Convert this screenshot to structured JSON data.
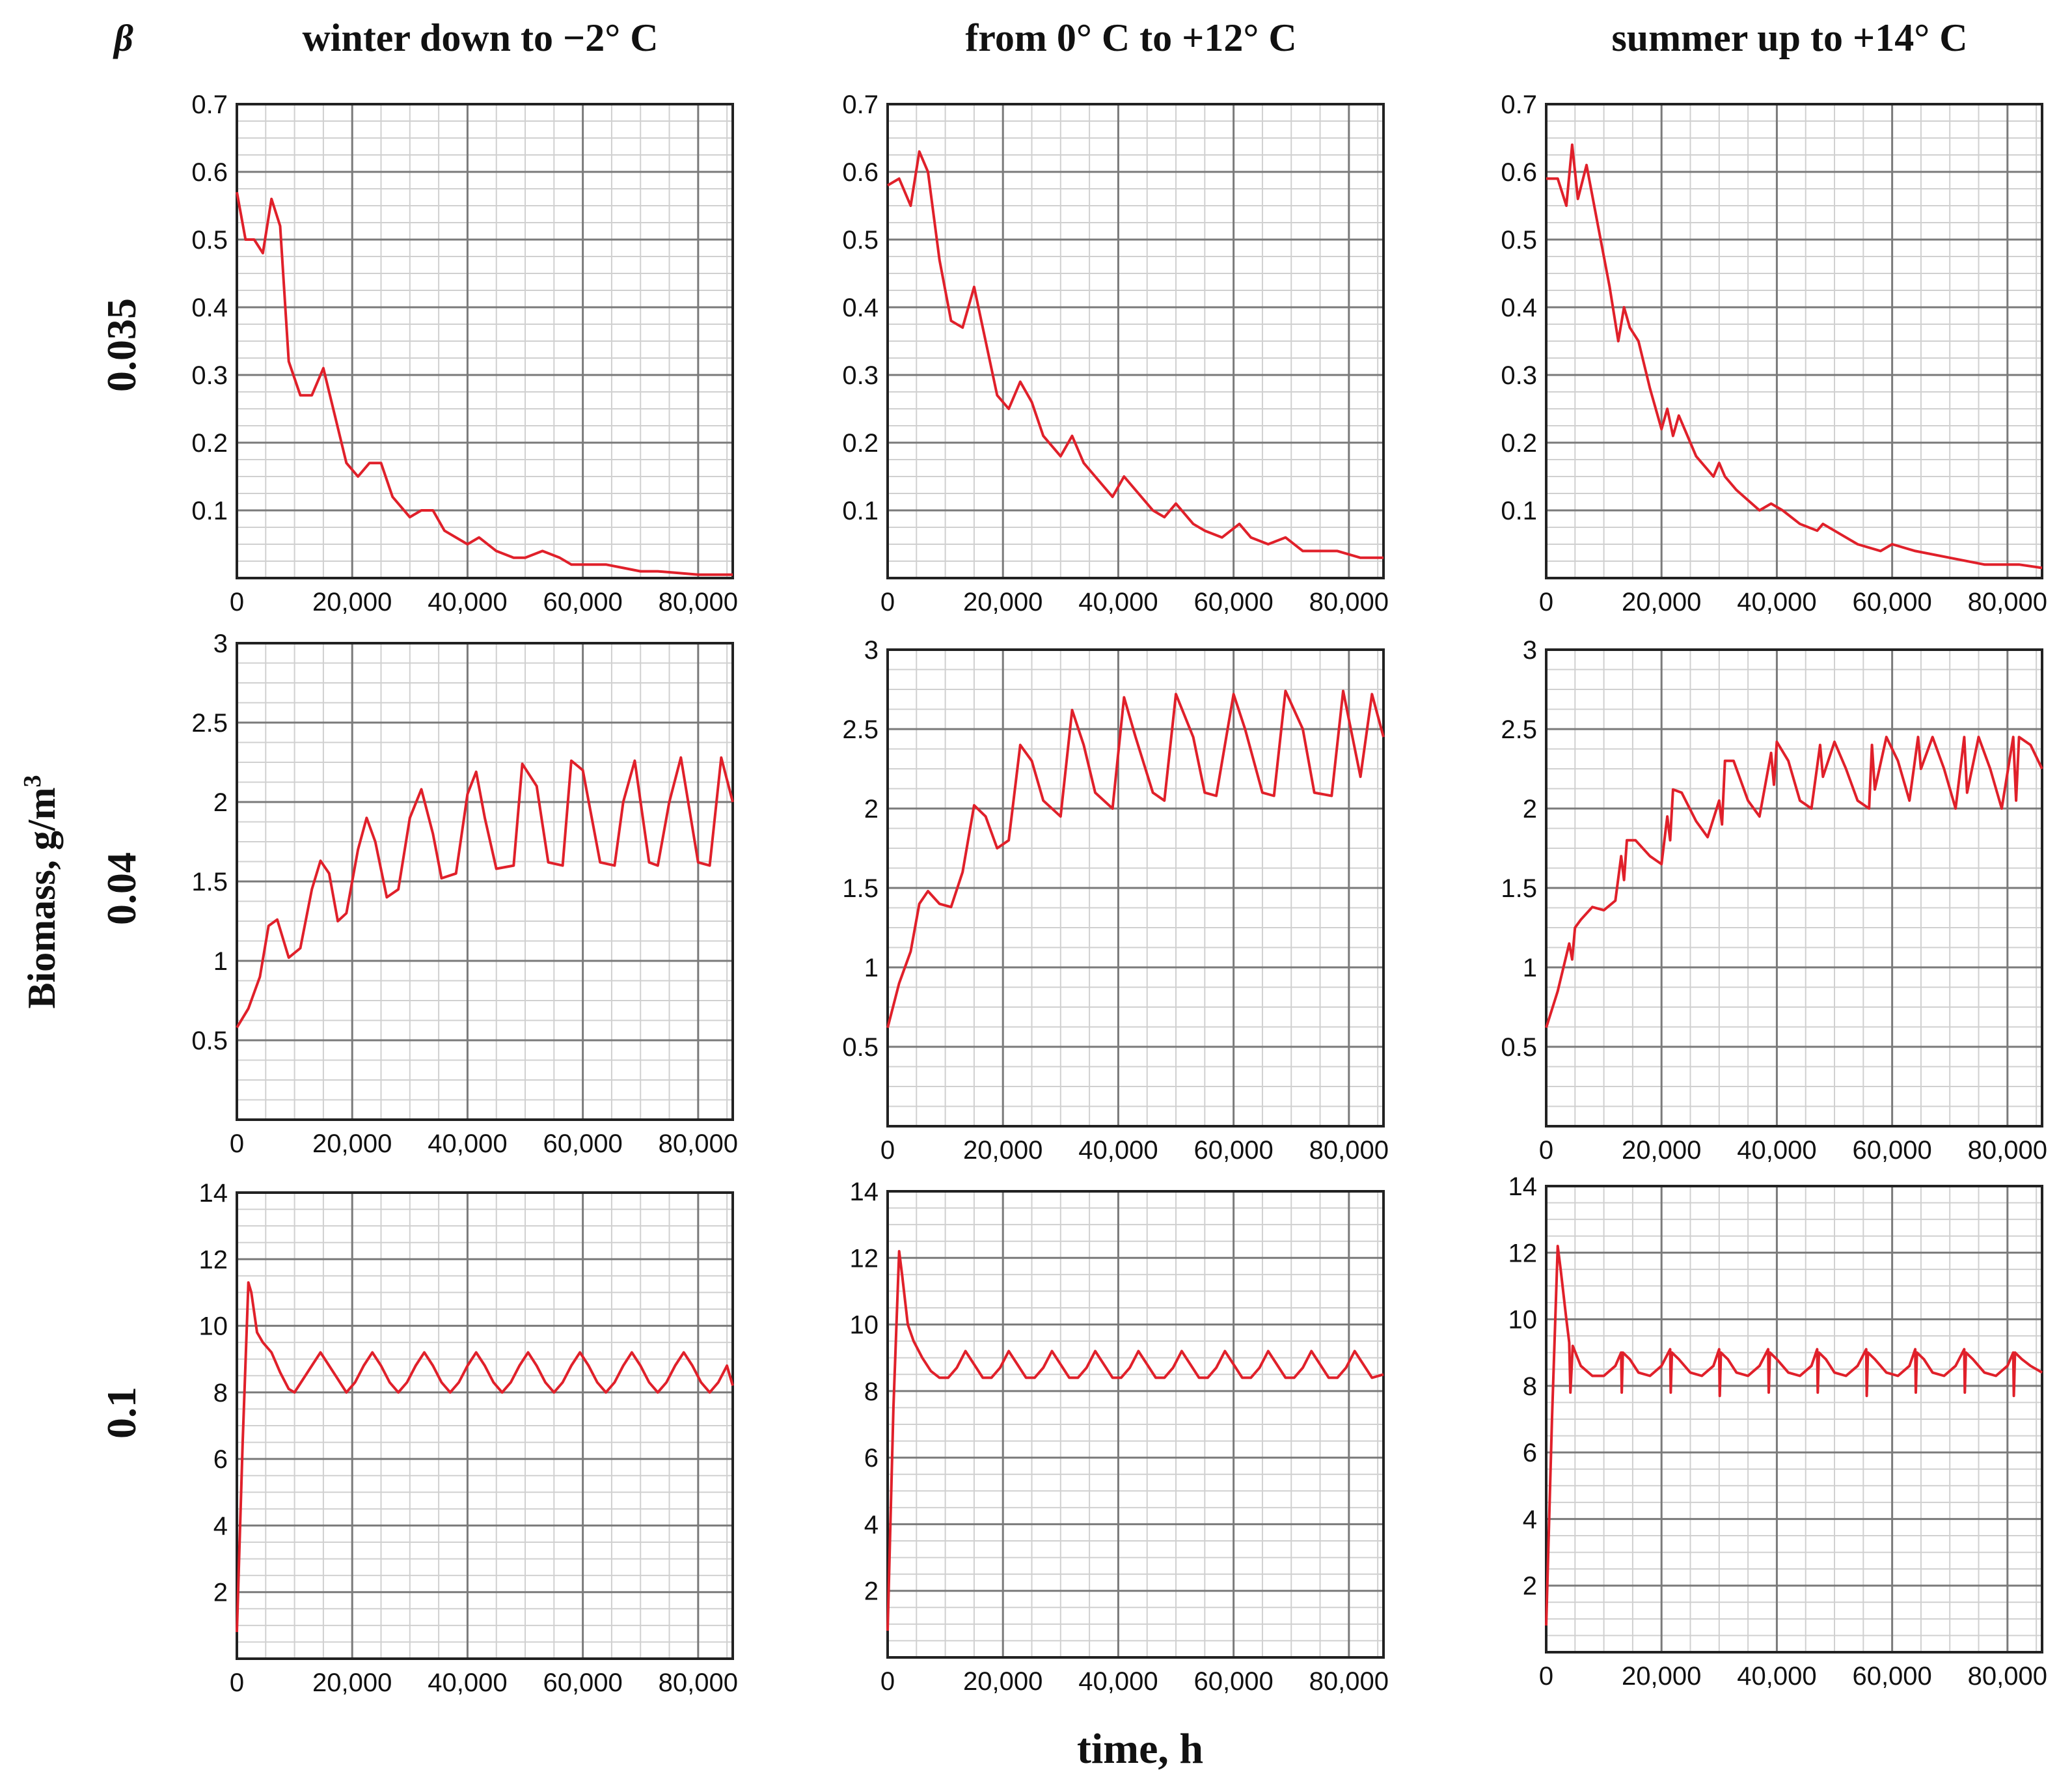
{
  "figure": {
    "beta_symbol": "β",
    "column_titles": [
      "winter down to −2° C",
      "from 0° C to +12° C",
      "summer up to +14° C"
    ],
    "row_labels": [
      "0.035",
      "0.04",
      "0.1"
    ],
    "y_axis_label": "Biomass, g/m",
    "y_axis_label_sup": "3",
    "x_axis_label": "time, h",
    "x_tick_labels": [
      "0",
      "20,000",
      "40,000",
      "60,000",
      "80,000"
    ],
    "colors": {
      "line": "#e0202a",
      "grid_major": "#7a7a7a",
      "grid_minor": "#d0d0d0",
      "axis": "#222222"
    }
  },
  "chart_data": [
    {
      "type": "line",
      "id": "r0c0",
      "beta": "0.035",
      "condition": "winter down to −2° C",
      "xlim": [
        0,
        86000
      ],
      "ylim": [
        0,
        0.7
      ],
      "yticks": [
        0.1,
        0.2,
        0.3,
        0.4,
        0.5,
        0.6,
        0.7
      ],
      "ytick_labels": [
        "0.1",
        "0.2",
        "0.3",
        "0.4",
        "0.5",
        "0.6",
        "0.7"
      ],
      "x": [
        0,
        1500,
        3000,
        4500,
        6000,
        7500,
        9000,
        11000,
        13000,
        15000,
        17000,
        19000,
        21000,
        23000,
        25000,
        27000,
        30000,
        32000,
        34000,
        36000,
        38000,
        40000,
        42000,
        45000,
        48000,
        50000,
        53000,
        56000,
        58000,
        61000,
        64000,
        67000,
        70000,
        73000,
        76000,
        80000,
        86000
      ],
      "y": [
        0.57,
        0.5,
        0.5,
        0.48,
        0.56,
        0.52,
        0.32,
        0.27,
        0.27,
        0.31,
        0.24,
        0.17,
        0.15,
        0.17,
        0.17,
        0.12,
        0.09,
        0.1,
        0.1,
        0.07,
        0.06,
        0.05,
        0.06,
        0.04,
        0.03,
        0.03,
        0.04,
        0.03,
        0.02,
        0.02,
        0.02,
        0.015,
        0.01,
        0.01,
        0.008,
        0.005,
        0.005
      ]
    },
    {
      "type": "line",
      "id": "r0c1",
      "beta": "0.035",
      "condition": "from 0° C to +12° C",
      "xlim": [
        0,
        86000
      ],
      "ylim": [
        0,
        0.7
      ],
      "yticks": [
        0.1,
        0.2,
        0.3,
        0.4,
        0.5,
        0.6,
        0.7
      ],
      "ytick_labels": [
        "0.1",
        "0.2",
        "0.3",
        "0.4",
        "0.5",
        "0.6",
        "0.7"
      ],
      "x": [
        0,
        2000,
        4000,
        5500,
        7000,
        9000,
        11000,
        13000,
        15000,
        17000,
        19000,
        21000,
        23000,
        25000,
        27000,
        30000,
        32000,
        34000,
        36000,
        39000,
        41000,
        43000,
        46000,
        48000,
        50000,
        53000,
        55000,
        58000,
        61000,
        63000,
        66000,
        69000,
        72000,
        75000,
        78000,
        82000,
        86000
      ],
      "y": [
        0.58,
        0.59,
        0.55,
        0.63,
        0.6,
        0.47,
        0.38,
        0.37,
        0.43,
        0.35,
        0.27,
        0.25,
        0.29,
        0.26,
        0.21,
        0.18,
        0.21,
        0.17,
        0.15,
        0.12,
        0.15,
        0.13,
        0.1,
        0.09,
        0.11,
        0.08,
        0.07,
        0.06,
        0.08,
        0.06,
        0.05,
        0.06,
        0.04,
        0.04,
        0.04,
        0.03,
        0.03
      ]
    },
    {
      "type": "line",
      "id": "r0c2",
      "beta": "0.035",
      "condition": "summer up to +14° C",
      "xlim": [
        0,
        86000
      ],
      "ylim": [
        0,
        0.7
      ],
      "yticks": [
        0.1,
        0.2,
        0.3,
        0.4,
        0.5,
        0.6,
        0.7
      ],
      "ytick_labels": [
        "0.1",
        "0.2",
        "0.3",
        "0.4",
        "0.5",
        "0.6",
        "0.7"
      ],
      "x": [
        0,
        2000,
        3500,
        4500,
        5500,
        7000,
        9000,
        11000,
        12500,
        13500,
        14500,
        16000,
        18000,
        20000,
        21000,
        22000,
        23000,
        24000,
        26000,
        29000,
        30000,
        31000,
        33000,
        37000,
        39000,
        41000,
        44000,
        47000,
        48000,
        50000,
        54000,
        58000,
        60000,
        64000,
        70000,
        76000,
        82000,
        86000
      ],
      "y": [
        0.59,
        0.59,
        0.55,
        0.64,
        0.56,
        0.61,
        0.52,
        0.43,
        0.35,
        0.4,
        0.37,
        0.35,
        0.28,
        0.22,
        0.25,
        0.21,
        0.24,
        0.22,
        0.18,
        0.15,
        0.17,
        0.15,
        0.13,
        0.1,
        0.11,
        0.1,
        0.08,
        0.07,
        0.08,
        0.07,
        0.05,
        0.04,
        0.05,
        0.04,
        0.03,
        0.02,
        0.02,
        0.015
      ]
    },
    {
      "type": "line",
      "id": "r1c0",
      "beta": "0.04",
      "condition": "winter down to −2° C",
      "xlim": [
        0,
        86000
      ],
      "ylim": [
        0,
        3
      ],
      "yticks": [
        0.5,
        1,
        1.5,
        2,
        2.5,
        3
      ],
      "ytick_labels": [
        "0.5",
        "1",
        "1.5",
        "2",
        "2.5",
        "3"
      ],
      "x": [
        0,
        2000,
        4000,
        5500,
        7000,
        9000,
        11000,
        13000,
        14500,
        16000,
        17500,
        19000,
        21000,
        22500,
        24000,
        26000,
        28000,
        30000,
        32000,
        34000,
        35500,
        38000,
        40000,
        41500,
        43000,
        45000,
        48000,
        49500,
        52000,
        54000,
        56500,
        58000,
        60000,
        63000,
        65500,
        67000,
        69000,
        71500,
        73000,
        75000,
        77000,
        80000,
        82000,
        84000,
        86000
      ],
      "y": [
        0.58,
        0.7,
        0.9,
        1.22,
        1.26,
        1.02,
        1.08,
        1.45,
        1.63,
        1.55,
        1.25,
        1.3,
        1.7,
        1.9,
        1.75,
        1.4,
        1.45,
        1.9,
        2.08,
        1.8,
        1.52,
        1.55,
        2.05,
        2.19,
        1.9,
        1.58,
        1.6,
        2.24,
        2.1,
        1.62,
        1.6,
        2.26,
        2.2,
        1.62,
        1.6,
        2.0,
        2.26,
        1.62,
        1.6,
        2.0,
        2.28,
        1.62,
        1.6,
        2.28,
        2.0
      ]
    },
    {
      "type": "line",
      "id": "r1c1",
      "beta": "0.04",
      "condition": "from 0° C to +12° C",
      "xlim": [
        0,
        86000
      ],
      "ylim": [
        0,
        3
      ],
      "yticks": [
        0.5,
        1,
        1.5,
        2,
        2.5,
        3
      ],
      "ytick_labels": [
        "0.5",
        "1",
        "1.5",
        "2",
        "2.5",
        "3"
      ],
      "x": [
        0,
        2000,
        4000,
        5500,
        7000,
        9000,
        11000,
        13000,
        15000,
        17000,
        19000,
        21000,
        23000,
        25000,
        27000,
        30000,
        32000,
        34000,
        36000,
        39000,
        41000,
        43000,
        46000,
        48000,
        50000,
        53000,
        55000,
        57000,
        60000,
        62000,
        65000,
        67000,
        69000,
        72000,
        74000,
        77000,
        79000,
        82000,
        84000,
        86000
      ],
      "y": [
        0.62,
        0.9,
        1.1,
        1.4,
        1.48,
        1.4,
        1.38,
        1.6,
        2.02,
        1.95,
        1.75,
        1.8,
        2.4,
        2.3,
        2.05,
        1.95,
        2.62,
        2.4,
        2.1,
        2.0,
        2.7,
        2.45,
        2.1,
        2.05,
        2.72,
        2.45,
        2.1,
        2.08,
        2.72,
        2.5,
        2.1,
        2.08,
        2.74,
        2.5,
        2.1,
        2.08,
        2.74,
        2.2,
        2.72,
        2.45
      ]
    },
    {
      "type": "line",
      "id": "r1c2",
      "beta": "0.04",
      "condition": "summer up to +14° C",
      "xlim": [
        0,
        86000
      ],
      "ylim": [
        0,
        3
      ],
      "yticks": [
        0.5,
        1,
        1.5,
        2,
        2.5,
        3
      ],
      "ytick_labels": [
        "0.5",
        "1",
        "1.5",
        "2",
        "2.5",
        "3"
      ],
      "x": [
        0,
        2000,
        4000,
        4500,
        5000,
        6000,
        8000,
        10000,
        12000,
        13000,
        13500,
        14000,
        15500,
        18000,
        20000,
        21000,
        21500,
        22000,
        23500,
        26000,
        28000,
        30000,
        30500,
        31000,
        32500,
        35000,
        37000,
        39000,
        39500,
        40000,
        42000,
        44000,
        46000,
        47500,
        48000,
        50000,
        52000,
        54000,
        56000,
        56500,
        57000,
        59000,
        61000,
        63000,
        64500,
        65000,
        67000,
        69000,
        71000,
        72500,
        73000,
        75000,
        77000,
        79000,
        81000,
        81500,
        82000,
        84000,
        86000
      ],
      "y": [
        0.62,
        0.85,
        1.15,
        1.05,
        1.25,
        1.3,
        1.38,
        1.36,
        1.42,
        1.7,
        1.55,
        1.8,
        1.8,
        1.7,
        1.65,
        1.95,
        1.8,
        2.12,
        2.1,
        1.92,
        1.82,
        2.05,
        1.9,
        2.3,
        2.3,
        2.05,
        1.95,
        2.35,
        2.15,
        2.42,
        2.3,
        2.05,
        2.0,
        2.4,
        2.2,
        2.42,
        2.25,
        2.05,
        2.0,
        2.4,
        2.12,
        2.45,
        2.3,
        2.05,
        2.45,
        2.25,
        2.45,
        2.25,
        2.0,
        2.45,
        2.1,
        2.45,
        2.25,
        2.0,
        2.45,
        2.05,
        2.45,
        2.4,
        2.25
      ]
    },
    {
      "type": "line",
      "id": "r2c0",
      "beta": "0.1",
      "condition": "winter down to −2° C",
      "xlim": [
        0,
        86000
      ],
      "ylim": [
        0,
        14
      ],
      "yticks": [
        2,
        4,
        6,
        8,
        10,
        12,
        14
      ],
      "ytick_labels": [
        "2",
        "4",
        "6",
        "8",
        "10",
        "12",
        "14"
      ],
      "x": [
        0,
        1000,
        2000,
        2500,
        3500,
        4500,
        6000,
        7500,
        9000,
        10000,
        11500,
        13000,
        14500,
        16000,
        17500,
        19000,
        20500,
        22000,
        23500,
        25000,
        26500,
        28000,
        29500,
        31000,
        32500,
        34000,
        35500,
        37000,
        38500,
        40000,
        41500,
        43000,
        44500,
        46000,
        47500,
        49000,
        50500,
        52000,
        53500,
        55000,
        56500,
        58000,
        59500,
        61000,
        62500,
        64000,
        65500,
        67000,
        68500,
        70000,
        71500,
        73000,
        74500,
        76000,
        77500,
        79000,
        80500,
        82000,
        83500,
        85000,
        86000
      ],
      "y": [
        0.8,
        6.5,
        11.3,
        11.0,
        9.8,
        9.5,
        9.2,
        8.6,
        8.1,
        8.0,
        8.4,
        8.8,
        9.2,
        8.8,
        8.4,
        8.0,
        8.3,
        8.8,
        9.2,
        8.8,
        8.3,
        8.0,
        8.3,
        8.8,
        9.2,
        8.8,
        8.3,
        8.0,
        8.3,
        8.8,
        9.2,
        8.8,
        8.3,
        8.0,
        8.3,
        8.8,
        9.2,
        8.8,
        8.3,
        8.0,
        8.3,
        8.8,
        9.2,
        8.8,
        8.3,
        8.0,
        8.3,
        8.8,
        9.2,
        8.8,
        8.3,
        8.0,
        8.3,
        8.8,
        9.2,
        8.8,
        8.3,
        8.0,
        8.3,
        8.8,
        8.2
      ]
    },
    {
      "type": "line",
      "id": "r2c1",
      "beta": "0.1",
      "condition": "from 0° C to +12° C",
      "xlim": [
        0,
        86000
      ],
      "ylim": [
        0,
        14
      ],
      "yticks": [
        2,
        4,
        6,
        8,
        10,
        12,
        14
      ],
      "ytick_labels": [
        "2",
        "4",
        "6",
        "8",
        "10",
        "12",
        "14"
      ],
      "x": [
        0,
        1000,
        2000,
        2500,
        3500,
        4500,
        6000,
        7500,
        9000,
        10500,
        12000,
        13500,
        15000,
        16500,
        18000,
        19500,
        21000,
        22500,
        24000,
        25500,
        27000,
        28500,
        30000,
        31500,
        33000,
        34500,
        36000,
        37500,
        39000,
        40500,
        42000,
        43500,
        45000,
        46500,
        48000,
        49500,
        51000,
        52500,
        54000,
        55500,
        57000,
        58500,
        60000,
        61500,
        63000,
        64500,
        66000,
        67500,
        69000,
        70500,
        72000,
        73500,
        75000,
        76500,
        78000,
        79500,
        81000,
        82500,
        84000,
        86000
      ],
      "y": [
        0.8,
        7.5,
        12.2,
        11.5,
        10.0,
        9.5,
        9.0,
        8.6,
        8.4,
        8.4,
        8.7,
        9.2,
        8.8,
        8.4,
        8.4,
        8.7,
        9.2,
        8.8,
        8.4,
        8.4,
        8.7,
        9.2,
        8.8,
        8.4,
        8.4,
        8.7,
        9.2,
        8.8,
        8.4,
        8.4,
        8.7,
        9.2,
        8.8,
        8.4,
        8.4,
        8.7,
        9.2,
        8.8,
        8.4,
        8.4,
        8.7,
        9.2,
        8.8,
        8.4,
        8.4,
        8.7,
        9.2,
        8.8,
        8.4,
        8.4,
        8.7,
        9.2,
        8.8,
        8.4,
        8.4,
        8.7,
        9.2,
        8.8,
        8.4,
        8.5
      ]
    },
    {
      "type": "line",
      "id": "r2c2",
      "beta": "0.1",
      "condition": "summer up to +14° C",
      "xlim": [
        0,
        86000
      ],
      "ylim": [
        0,
        14
      ],
      "yticks": [
        2,
        4,
        6,
        8,
        10,
        12,
        14
      ],
      "ytick_labels": [
        "2",
        "4",
        "6",
        "8",
        "10",
        "12",
        "14"
      ],
      "x": [
        0,
        1000,
        2000,
        2500,
        3500,
        4000,
        4200,
        4600,
        6000,
        8000,
        10000,
        12000,
        13000,
        13100,
        13300,
        14500,
        16000,
        18000,
        20000,
        21500,
        21600,
        21800,
        23000,
        25000,
        27000,
        29000,
        30000,
        30100,
        30300,
        31500,
        33000,
        35000,
        37000,
        38500,
        38600,
        38800,
        40000,
        42000,
        44000,
        46000,
        47000,
        47100,
        47300,
        48500,
        50000,
        52000,
        54000,
        55500,
        55600,
        55800,
        57000,
        59000,
        61000,
        63000,
        64000,
        64100,
        64300,
        65500,
        67000,
        69000,
        71000,
        72500,
        72600,
        72800,
        74000,
        76000,
        78000,
        80000,
        81000,
        81100,
        81300,
        82500,
        84000,
        86000
      ],
      "y": [
        0.8,
        7.0,
        12.2,
        11.5,
        10.0,
        9.3,
        7.8,
        9.2,
        8.6,
        8.3,
        8.3,
        8.6,
        9.0,
        7.8,
        9.0,
        8.8,
        8.4,
        8.3,
        8.6,
        9.1,
        7.8,
        9.0,
        8.8,
        8.4,
        8.3,
        8.6,
        9.1,
        7.7,
        9.0,
        8.8,
        8.4,
        8.3,
        8.6,
        9.1,
        7.8,
        9.0,
        8.8,
        8.4,
        8.3,
        8.6,
        9.1,
        7.8,
        9.0,
        8.8,
        8.4,
        8.3,
        8.6,
        9.1,
        7.7,
        9.0,
        8.8,
        8.4,
        8.3,
        8.6,
        9.1,
        7.8,
        9.0,
        8.8,
        8.4,
        8.3,
        8.6,
        9.1,
        7.8,
        9.0,
        8.8,
        8.4,
        8.3,
        8.6,
        9.0,
        7.7,
        9.0,
        8.8,
        8.6,
        8.4
      ]
    }
  ]
}
